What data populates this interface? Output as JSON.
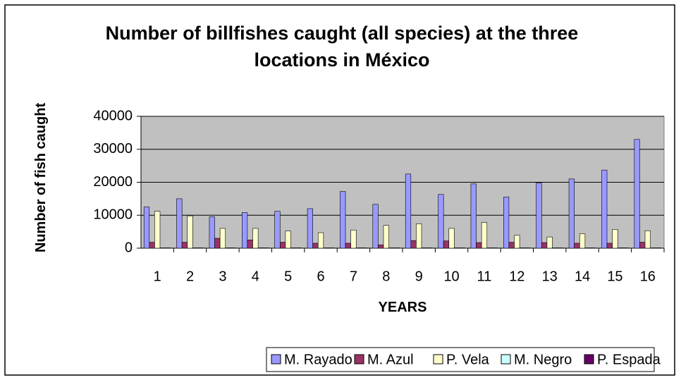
{
  "chart_data": {
    "type": "bar",
    "title": "Number of billfishes caught (all species) at the three locations in México",
    "x_label": "YEARS",
    "y_label": "Number of fish caught",
    "categories": [
      "1",
      "2",
      "3",
      "4",
      "5",
      "6",
      "7",
      "8",
      "9",
      "10",
      "11",
      "12",
      "13",
      "14",
      "15",
      "16"
    ],
    "series": [
      {
        "name": "M. Rayado",
        "color": "#9999ff",
        "values": [
          12500,
          15000,
          9500,
          10800,
          11200,
          12000,
          17200,
          13300,
          22500,
          16300,
          19500,
          15500,
          19800,
          21000,
          23700,
          33000
        ]
      },
      {
        "name": "M. Azul",
        "color": "#993366",
        "values": [
          1800,
          1800,
          3000,
          2500,
          1800,
          1500,
          1500,
          1000,
          2300,
          2200,
          1700,
          1800,
          1700,
          1500,
          1500,
          1800
        ]
      },
      {
        "name": "P. Vela",
        "color": "#ffffcc",
        "values": [
          11200,
          9800,
          6000,
          6000,
          5200,
          4700,
          5500,
          6900,
          7400,
          6000,
          7800,
          3900,
          3400,
          4400,
          5700,
          5300
        ]
      },
      {
        "name": "M. Negro",
        "color": "#ccffff",
        "values": [
          100,
          100,
          100,
          100,
          100,
          100,
          100,
          100,
          100,
          100,
          100,
          100,
          100,
          100,
          100,
          100
        ]
      },
      {
        "name": "P. Espada",
        "color": "#660066",
        "values": [
          100,
          100,
          100,
          100,
          100,
          100,
          100,
          100,
          100,
          100,
          100,
          100,
          100,
          100,
          100,
          100
        ]
      }
    ],
    "ylim": [
      0,
      40000
    ],
    "yticks": [
      0,
      10000,
      20000,
      30000,
      40000
    ],
    "grid": true,
    "legend": "bottom"
  }
}
